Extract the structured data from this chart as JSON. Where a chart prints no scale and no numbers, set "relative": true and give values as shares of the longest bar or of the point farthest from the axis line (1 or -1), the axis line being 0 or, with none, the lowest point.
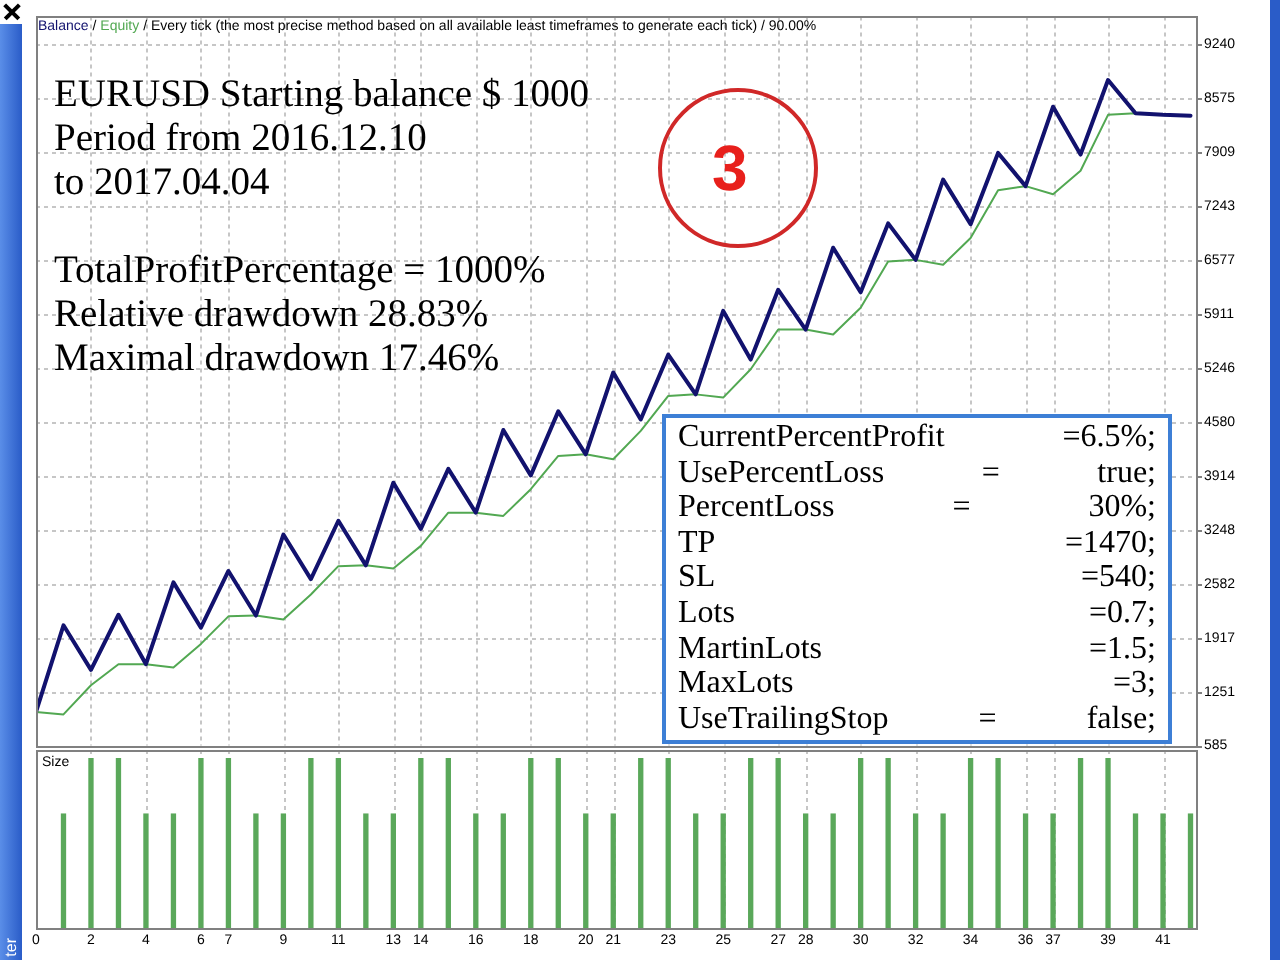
{
  "chart_data": [
    {
      "type": "line",
      "x": [
        0,
        1,
        2,
        3,
        4,
        5,
        6,
        7,
        8,
        9,
        10,
        11,
        12,
        13,
        14,
        15,
        16,
        17,
        18,
        19,
        20,
        21,
        22,
        23,
        24,
        25,
        26,
        27,
        28,
        29,
        30,
        31,
        32,
        33,
        34,
        35,
        36,
        37,
        38,
        39,
        40,
        41,
        42
      ],
      "series": [
        {
          "name": "Balance",
          "color": "#12126e",
          "values": [
            1000,
            2070,
            1520,
            2200,
            1590,
            2600,
            2040,
            2740,
            2190,
            3190,
            2640,
            3360,
            2810,
            3830,
            3260,
            4000,
            3460,
            4480,
            3920,
            4710,
            4180,
            5190,
            4610,
            5410,
            4920,
            5950,
            5350,
            6210,
            5720,
            6730,
            6180,
            7030,
            6580,
            7570,
            7020,
            7900,
            7490,
            8470,
            7880,
            8800,
            8390,
            8370,
            8360
          ]
        },
        {
          "name": "Equity",
          "color": "#52a852",
          "values": [
            1000,
            970,
            1330,
            1590,
            1590,
            1550,
            1840,
            2180,
            2190,
            2140,
            2450,
            2800,
            2810,
            2770,
            3050,
            3460,
            3460,
            3420,
            3750,
            4160,
            4180,
            4120,
            4470,
            4900,
            4920,
            4880,
            5230,
            5720,
            5720,
            5660,
            5990,
            6560,
            6580,
            6520,
            6850,
            7440,
            7490,
            7390,
            7680,
            8370,
            8390,
            8370,
            8360
          ]
        }
      ],
      "xlim": [
        0,
        42.2
      ],
      "xticks": [
        0,
        2,
        4,
        6,
        7,
        9,
        11,
        13,
        14,
        16,
        18,
        20,
        21,
        23,
        25,
        27,
        28,
        30,
        32,
        34,
        36,
        37,
        39,
        41
      ],
      "ylim": [
        585,
        9585
      ],
      "yticks": [
        585,
        1251,
        1917,
        2582,
        3248,
        3914,
        4580,
        5246,
        5911,
        6577,
        7243,
        7909,
        8575,
        9240
      ],
      "grid": true,
      "legend": "top left",
      "tick_labels": "y",
      "annotations": [
        "/",
        "/ Every tick (the most precise method based on all available least timeframes to generate each tick) / 90.00%",
        "EURUSD Starting balance $ 1000",
        "Period from 2016.12.10",
        "to 2017.04.04",
        "TotalProfitPercentage = 1000%",
        "Relative drawdown 28.83%",
        "Maximal drawdown 17.46%",
        "3",
        "CurrentPercentProfit =6.5%;",
        "UsePercentLoss = true;",
        "PercentLoss = 30%;",
        "TP =1470;",
        "SL =540;",
        "Lots =0.7;",
        "MartinLots =1.5;",
        "MaxLots =3;",
        "UseTrailingStop = false;",
        "ter"
      ]
    },
    {
      "type": "bar",
      "title": "Size",
      "x": [
        1,
        2,
        3,
        4,
        5,
        6,
        7,
        8,
        9,
        10,
        11,
        12,
        13,
        14,
        15,
        16,
        17,
        18,
        19,
        20,
        21,
        22,
        23,
        24,
        25,
        26,
        27,
        28,
        29,
        30,
        31,
        32,
        33,
        34,
        35,
        36,
        37,
        38,
        39,
        40,
        41,
        42
      ],
      "values": [
        0.67,
        1,
        1,
        0.67,
        0.67,
        1,
        1,
        0.67,
        0.67,
        1,
        1,
        0.67,
        0.67,
        1,
        1,
        0.67,
        0.67,
        1,
        1,
        0.67,
        0.67,
        1,
        1,
        0.67,
        0.67,
        1,
        1,
        0.67,
        0.67,
        1,
        1,
        0.67,
        0.67,
        1,
        1,
        0.67,
        0.67,
        1,
        1,
        0.67,
        0.67,
        0.67
      ],
      "color": "#5aa85a",
      "relative": true,
      "xlim": [
        0,
        42.2
      ],
      "xticks": [
        0,
        2,
        4,
        6,
        7,
        9,
        11,
        13,
        14,
        16,
        18,
        20,
        21,
        23,
        25,
        27,
        28,
        30,
        32,
        34,
        36,
        37,
        39,
        41
      ],
      "grid": "x",
      "tick_labels": "x"
    }
  ]
}
